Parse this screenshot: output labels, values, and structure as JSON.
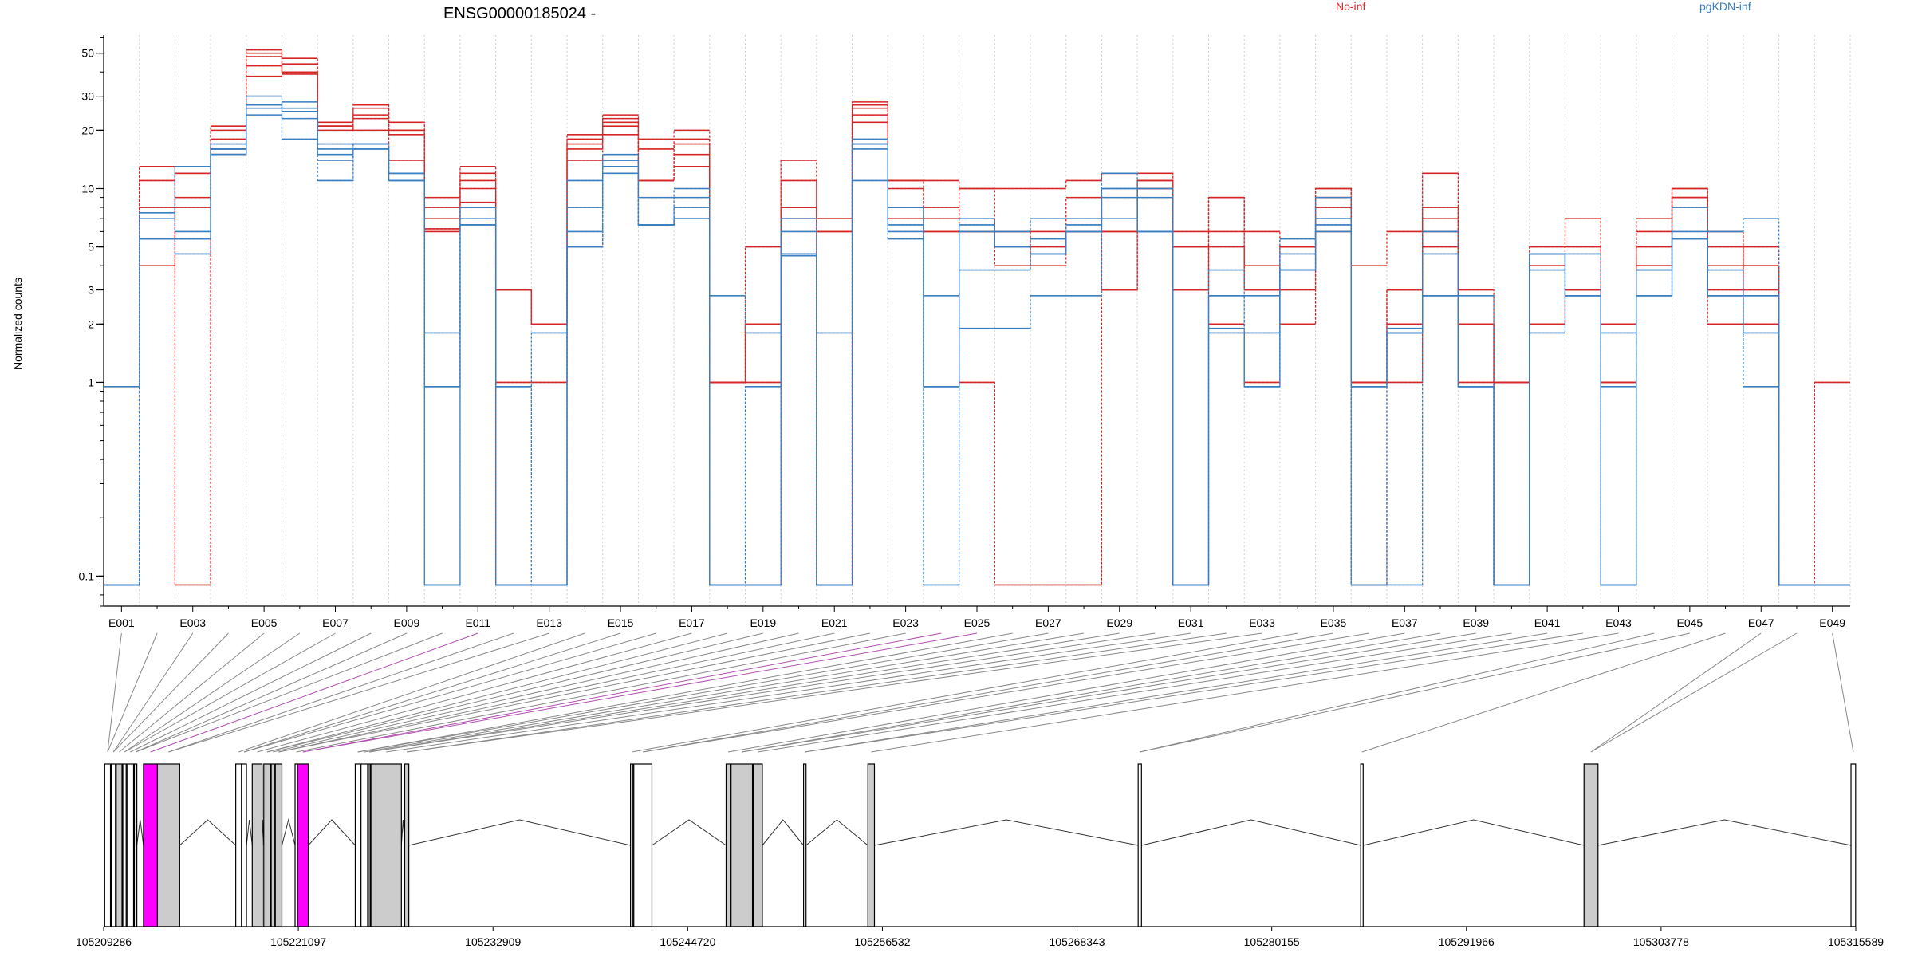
{
  "chart_data": {
    "type": "line",
    "title": "ENSG00000185024 -",
    "ylabel": "Normalized counts",
    "y_scale": "log",
    "ylim": [
      0.07,
      62
    ],
    "y_ticks": [
      0.1,
      1,
      2,
      3,
      5,
      10,
      20,
      30,
      50
    ],
    "legend_placement": "top",
    "grid": "vertical dotted lines between exon bins",
    "colors": {
      "No-inf": "#d62728",
      "pgKDN-inf": "#3a7fc1",
      "highlight": "#ff00ff",
      "exon_fill": "#cccccc",
      "exon_border": "#000000"
    },
    "exon_labels": [
      "E001",
      "E003",
      "E005",
      "E007",
      "E009",
      "E011",
      "E013",
      "E015",
      "E017",
      "E019",
      "E021",
      "E023",
      "E025",
      "E027",
      "E029",
      "E031",
      "E033",
      "E035",
      "E037",
      "E039",
      "E041",
      "E043",
      "E045",
      "E047",
      "E049"
    ],
    "exon_count": 49,
    "series": [
      {
        "name": "No-inf",
        "group": "No-inf",
        "values": [
          0.09,
          13,
          0.09,
          20,
          48,
          40,
          22,
          26,
          20,
          6.2,
          8.5,
          0.09,
          0.09,
          18,
          23,
          11,
          13,
          0.09,
          0.09,
          7,
          0.09,
          27,
          10,
          8,
          6,
          6,
          6,
          6,
          6,
          10,
          3,
          5,
          3,
          5,
          6,
          0.09,
          3,
          7,
          2,
          0.09,
          2,
          3,
          1,
          6,
          9,
          4,
          2,
          0.09,
          0.09
        ]
      },
      {
        "name": "No-inf",
        "group": "No-inf",
        "values": [
          0.09,
          11,
          12,
          18,
          43,
          39,
          21,
          23,
          19,
          8,
          10,
          1,
          1,
          16,
          21,
          11,
          17,
          1,
          2,
          11,
          6,
          22,
          7,
          7,
          10,
          4,
          5,
          9,
          3,
          10,
          5,
          9,
          4,
          2,
          9,
          1,
          2,
          12,
          3,
          1,
          5,
          7,
          2,
          7,
          10,
          5,
          4,
          0.09,
          0.09
        ]
      },
      {
        "name": "No-inf",
        "group": "No-inf",
        "values": [
          0.09,
          5.5,
          9,
          21,
          52,
          47,
          21,
          27,
          20,
          9,
          13,
          3,
          2,
          19,
          24,
          18,
          20,
          1,
          5,
          14,
          7,
          28,
          11,
          11,
          10,
          10,
          10,
          11,
          12,
          12,
          6,
          9,
          6,
          5,
          10,
          4,
          6,
          8,
          2,
          0.09,
          4,
          5,
          2,
          5,
          10,
          6,
          4,
          0.09,
          1
        ]
      },
      {
        "name": "No-inf",
        "group": "No-inf",
        "values": [
          0.09,
          8,
          8,
          16,
          38,
          44,
          20,
          24,
          22,
          7,
          12,
          3,
          2,
          17,
          22,
          16,
          18,
          1,
          1,
          8,
          6,
          26,
          11,
          6,
          1,
          0.09,
          0.09,
          0.09,
          3,
          11,
          5,
          2,
          1,
          3,
          10,
          1,
          1,
          6,
          1,
          1,
          2,
          3,
          1,
          4,
          9,
          2,
          3,
          0.09,
          0.09
        ]
      },
      {
        "name": "No-inf",
        "group": "No-inf",
        "values": [
          0.09,
          4,
          12,
          15,
          50,
          40,
          21,
          20,
          14,
          6,
          11,
          3,
          2,
          14,
          19,
          11,
          15,
          1,
          2,
          8,
          7,
          24,
          8,
          6,
          6,
          6,
          4,
          6,
          6,
          11,
          3,
          6,
          3,
          5,
          8,
          1,
          3,
          5,
          2,
          1,
          4,
          3,
          2,
          4,
          9,
          3,
          5,
          0.09,
          0.09
        ]
      },
      {
        "name": "pgKDN-inf",
        "group": "pgKDN-inf",
        "values": [
          0.09,
          5.5,
          5.5,
          15,
          27,
          23,
          15,
          16,
          12,
          0.95,
          6.5,
          0.09,
          0.09,
          5,
          14,
          6.5,
          7,
          0.09,
          0.95,
          4.5,
          0.09,
          17,
          6,
          0.95,
          1.9,
          1.9,
          2.8,
          2.8,
          12,
          6,
          0.09,
          1.9,
          0.95,
          3.8,
          7,
          0.95,
          1.9,
          2.8,
          0.95,
          0.09,
          4.6,
          2.8,
          0.09,
          2.8,
          5.5,
          2.8,
          2.8,
          0.09,
          0.09
        ]
      },
      {
        "name": "pgKDN-inf",
        "group": "pgKDN-inf",
        "values": [
          0.95,
          7,
          13,
          17,
          30,
          25,
          17,
          17,
          12,
          1.8,
          8,
          0.95,
          1.8,
          8,
          14,
          9,
          10,
          2.8,
          1.8,
          7,
          0.09,
          18,
          8,
          2.8,
          7,
          6,
          7,
          7,
          10,
          10,
          0.09,
          3.8,
          1.8,
          5.5,
          9,
          0.09,
          0.09,
          6,
          0.95,
          0.09,
          3.8,
          4.6,
          0.95,
          3.8,
          8,
          6,
          7,
          0.09,
          0.09
        ]
      },
      {
        "name": "pgKDN-inf",
        "group": "pgKDN-inf",
        "values": [
          0.09,
          5.5,
          4.6,
          16,
          24,
          18,
          11,
          17,
          11,
          0.09,
          8,
          0.95,
          0.09,
          11,
          12,
          6.5,
          8,
          0.09,
          0.09,
          6,
          1.8,
          11,
          8,
          0.95,
          3.8,
          3.8,
          4.6,
          6.5,
          7,
          9,
          0.09,
          2.8,
          2.8,
          4.6,
          6,
          0.09,
          1.8,
          4.6,
          2.8,
          0.09,
          1.8,
          2.8,
          1.8,
          3.8,
          6,
          3.8,
          1.8,
          0.09,
          0.09
        ]
      },
      {
        "name": "pgKDN-inf",
        "group": "pgKDN-inf",
        "values": [
          0.09,
          5.5,
          5.5,
          16,
          26,
          28,
          14,
          17,
          12,
          0.95,
          6.5,
          0.09,
          0.09,
          5,
          13,
          6.5,
          7,
          0.09,
          0.09,
          4.6,
          0.09,
          16,
          6.5,
          0.95,
          6.5,
          5,
          5.5,
          6,
          10,
          6,
          0.09,
          1.8,
          0.95,
          3.8,
          7,
          0.95,
          1.8,
          2.8,
          0.95,
          0.09,
          4.6,
          2.8,
          0.09,
          2.8,
          5.5,
          2.8,
          2.8,
          0.09,
          0.09
        ]
      },
      {
        "name": "pgKDN-inf",
        "group": "pgKDN-inf",
        "values": [
          0.09,
          7.5,
          6,
          15,
          27,
          26,
          16,
          16,
          11,
          0.09,
          7,
          0.09,
          0.09,
          6,
          15,
          6.5,
          9,
          0.09,
          0.09,
          4.6,
          0.09,
          17,
          5.5,
          0.09,
          6,
          5,
          4.6,
          6,
          9,
          6,
          0.09,
          2.8,
          0.95,
          3.8,
          6.5,
          0.95,
          1.8,
          2.8,
          0.95,
          0.09,
          4.6,
          2.8,
          0.09,
          2.8,
          5.5,
          2.8,
          0.95,
          0.09,
          0.09
        ]
      }
    ],
    "gene_model": {
      "x_tick_labels": [
        "105209286",
        "105221097",
        "105232909",
        "105244720",
        "105256532",
        "105268343",
        "105280155",
        "105291966",
        "105303778",
        "105315589"
      ],
      "x_tick_values": [
        105209286,
        105221097,
        105232909,
        105244720,
        105256532,
        105268343,
        105280155,
        105291966,
        105303778,
        105315589
      ],
      "x_range": [
        105209286,
        105315589
      ],
      "exons": [
        {
          "start": 105209350,
          "end": 105209700,
          "fill": "white"
        },
        {
          "start": 105209750,
          "end": 105210000,
          "fill": "white"
        },
        {
          "start": 105210050,
          "end": 105210400,
          "fill": "gray"
        },
        {
          "start": 105210450,
          "end": 105210650,
          "fill": "white"
        },
        {
          "start": 105210700,
          "end": 105211100,
          "fill": "white"
        },
        {
          "start": 105211150,
          "end": 105211300,
          "fill": "white"
        },
        {
          "start": 105211700,
          "end": 105212550,
          "fill": "magenta"
        },
        {
          "start": 105212550,
          "end": 105213900,
          "fill": "gray"
        },
        {
          "start": 105217300,
          "end": 105217650,
          "fill": "white"
        },
        {
          "start": 105217650,
          "end": 105217950,
          "fill": "white"
        },
        {
          "start": 105218300,
          "end": 105218900,
          "fill": "gray"
        },
        {
          "start": 105219000,
          "end": 105219400,
          "fill": "gray"
        },
        {
          "start": 105219450,
          "end": 105219650,
          "fill": "gray"
        },
        {
          "start": 105219700,
          "end": 105220100,
          "fill": "gray"
        },
        {
          "start": 105220900,
          "end": 105221050,
          "fill": "white"
        },
        {
          "start": 105221050,
          "end": 105221700,
          "fill": "magenta"
        },
        {
          "start": 105224550,
          "end": 105224850,
          "fill": "white"
        },
        {
          "start": 105224900,
          "end": 105225300,
          "fill": "white"
        },
        {
          "start": 105225350,
          "end": 105225450,
          "fill": "white"
        },
        {
          "start": 105225500,
          "end": 105227350,
          "fill": "gray"
        },
        {
          "start": 105227550,
          "end": 105227800,
          "fill": "gray"
        },
        {
          "start": 105241250,
          "end": 105241400,
          "fill": "white"
        },
        {
          "start": 105241450,
          "end": 105242550,
          "fill": "white"
        },
        {
          "start": 105247050,
          "end": 105247300,
          "fill": "gray"
        },
        {
          "start": 105247350,
          "end": 105248650,
          "fill": "gray"
        },
        {
          "start": 105248700,
          "end": 105249250,
          "fill": "gray"
        },
        {
          "start": 105251750,
          "end": 105251900,
          "fill": "white"
        },
        {
          "start": 105255650,
          "end": 105256050,
          "fill": "gray"
        },
        {
          "start": 105272050,
          "end": 105272250,
          "fill": "white"
        },
        {
          "start": 105285550,
          "end": 105285700,
          "fill": "white"
        },
        {
          "start": 105299100,
          "end": 105299950,
          "fill": "gray"
        },
        {
          "start": 105315300,
          "end": 105315580,
          "fill": "white"
        }
      ]
    }
  },
  "legend": {
    "noinf_label": "No-inf",
    "pgkdn_label": "pgKDN-inf"
  }
}
